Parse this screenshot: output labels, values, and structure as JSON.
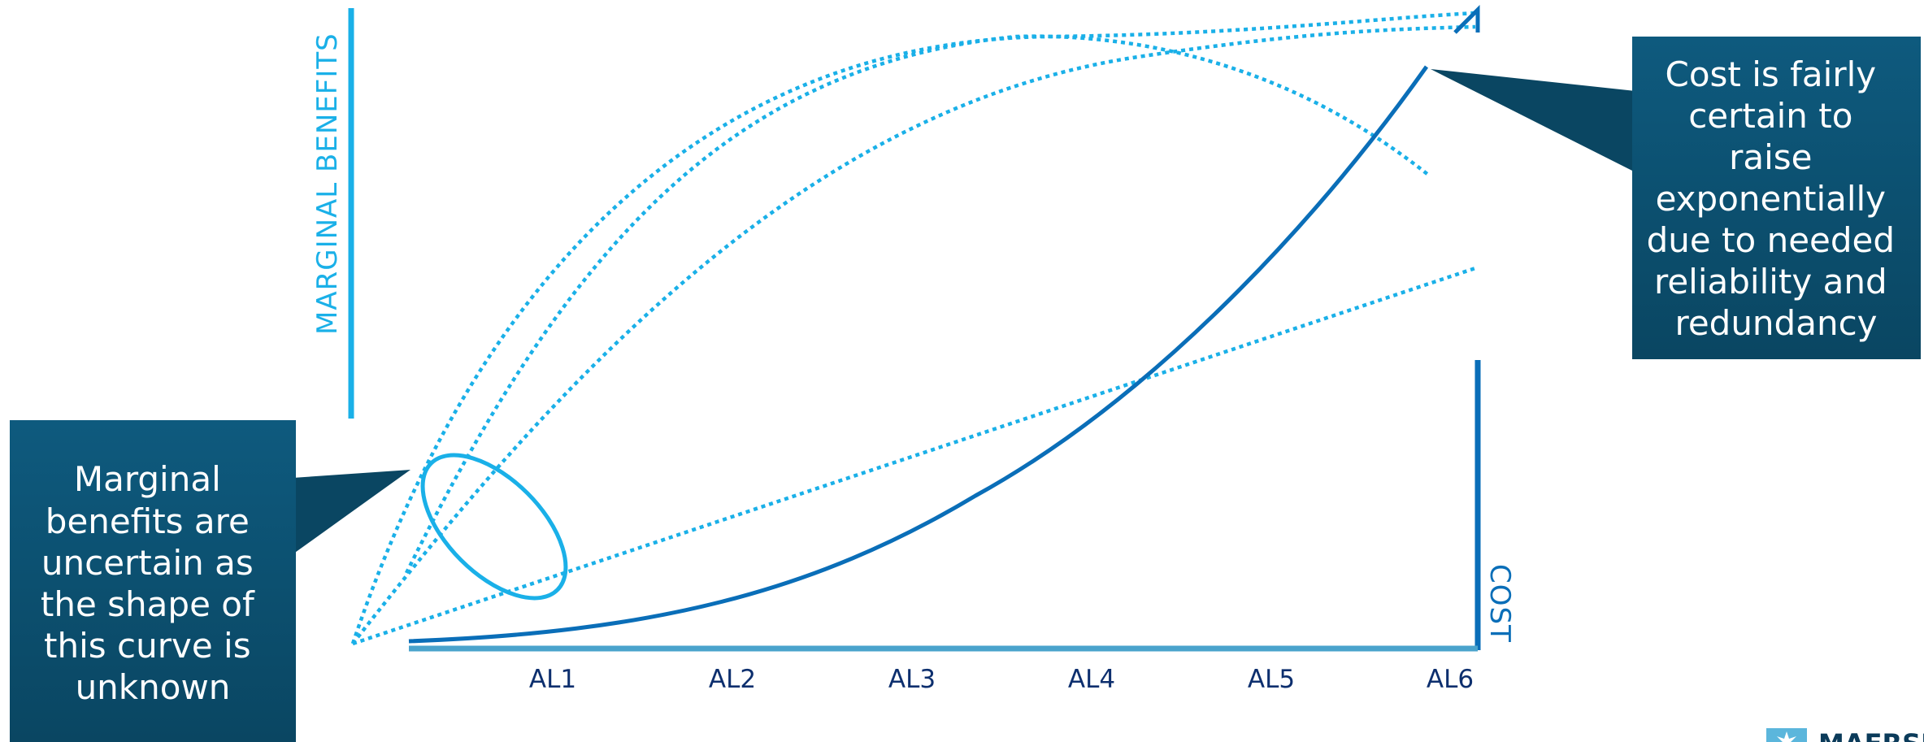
{
  "diagram": {
    "y_axis_title": "MARGINAL BENEFITS",
    "y2_axis_title": "COST",
    "x_ticks": [
      "AL1",
      "AL2",
      "AL3",
      "AL4",
      "AL5",
      "AL6"
    ],
    "callout_benefits_lines": [
      "Marginal",
      "benefits are",
      "uncertain as",
      "the shape of",
      "this curve is",
      "unknown"
    ],
    "callout_cost_lines": [
      "Cost is fairly",
      "certain to",
      "raise",
      "exponentially",
      "due to needed",
      "reliability and",
      "redundancy"
    ],
    "logo_text": "MAERSK"
  },
  "colors": {
    "benefits_line": "#1ab0e8",
    "cost_line": "#0a6eb8",
    "x_axis": "#4aa3cc",
    "callout_fill": "#0b4d6e",
    "tick_text": "#0d2f6e"
  }
}
